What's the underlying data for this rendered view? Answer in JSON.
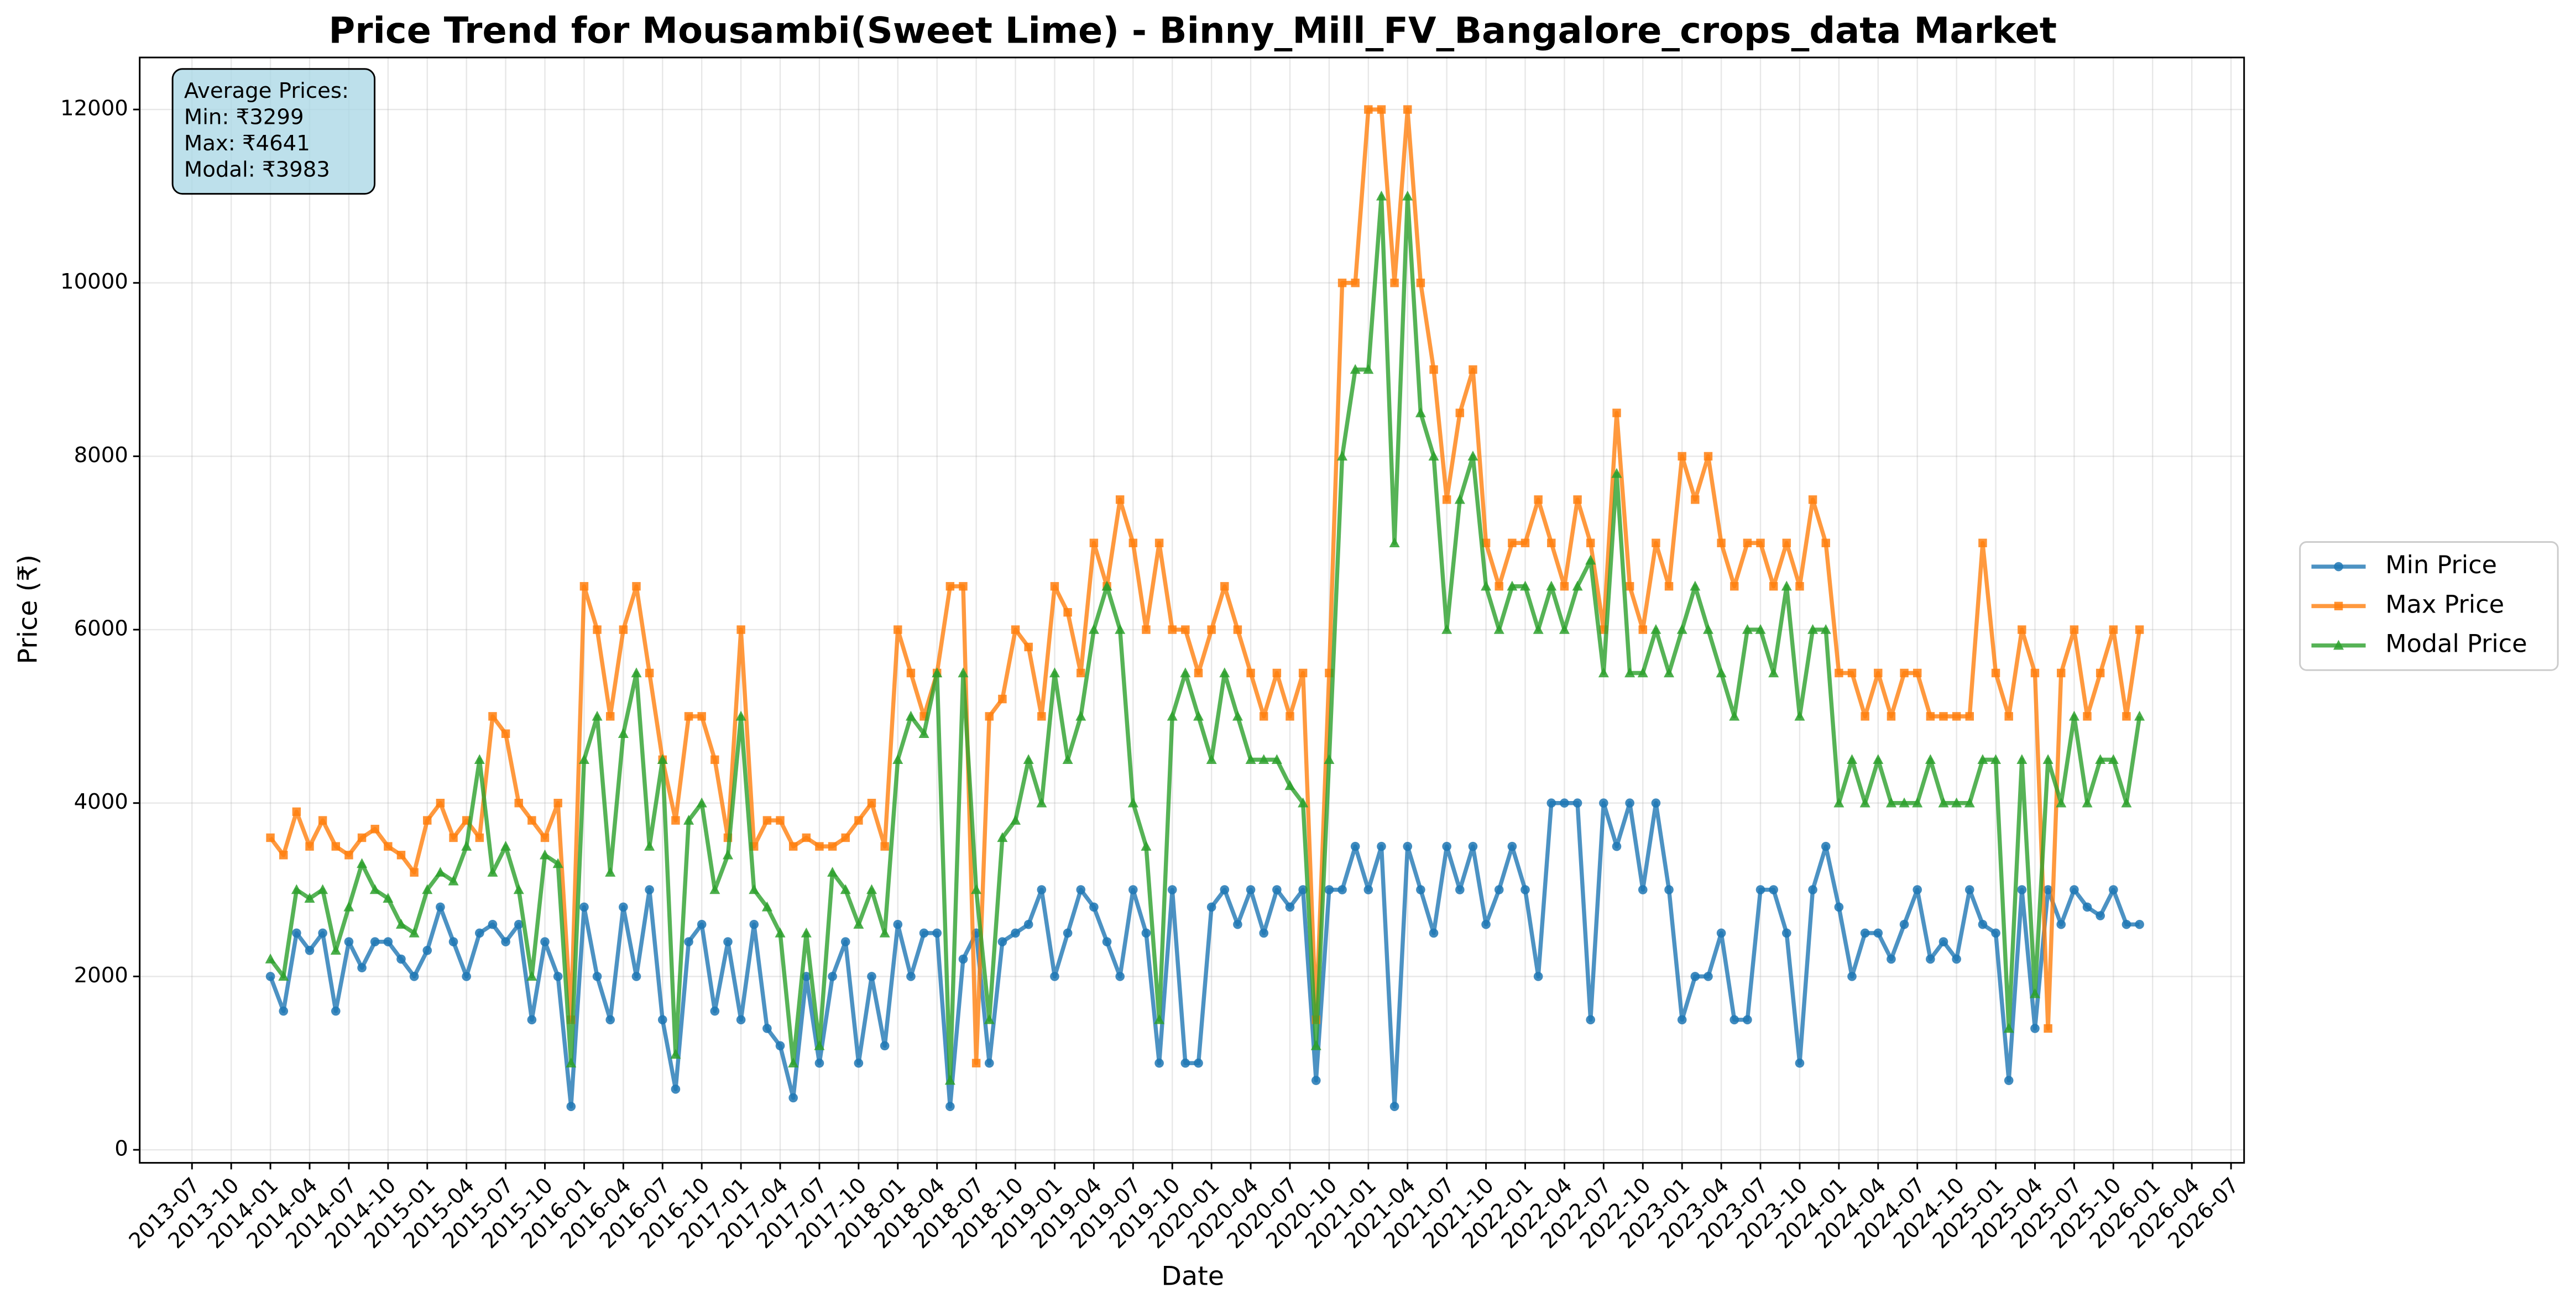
{
  "chart_data": {
    "type": "line",
    "title": "Price Trend for Mousambi(Sweet Lime) - Binny_Mill_FV_Bangalore_crops_data Market",
    "xlabel": "Date",
    "ylabel": "Price (₹)",
    "annotation": [
      "Average Prices:",
      "Min: ₹3299",
      "Max: ₹4641",
      "Modal: ₹3983"
    ],
    "legend": "outside right",
    "grid": true,
    "xlim": [
      "2013-03",
      "2026-08"
    ],
    "ylim": [
      -150,
      12600
    ],
    "yticks": [
      0,
      2000,
      4000,
      6000,
      8000,
      10000,
      12000
    ],
    "xticks": [
      "2013-07",
      "2013-10",
      "2014-01",
      "2014-04",
      "2014-07",
      "2014-10",
      "2015-01",
      "2015-04",
      "2015-07",
      "2015-10",
      "2016-01",
      "2016-04",
      "2016-07",
      "2016-10",
      "2017-01",
      "2017-04",
      "2017-07",
      "2017-10",
      "2018-01",
      "2018-04",
      "2018-07",
      "2018-10",
      "2019-01",
      "2019-04",
      "2019-07",
      "2019-10",
      "2020-01",
      "2020-04",
      "2020-07",
      "2020-10",
      "2021-01",
      "2021-04",
      "2021-07",
      "2021-10",
      "2022-01",
      "2022-04",
      "2022-07",
      "2022-10",
      "2023-01",
      "2023-04",
      "2023-07",
      "2023-10",
      "2024-01",
      "2024-04",
      "2024-07",
      "2024-10",
      "2025-01",
      "2025-04",
      "2025-07",
      "2025-10",
      "2026-01",
      "2026-04",
      "2026-07"
    ],
    "x": [
      "2014-01",
      "2014-02",
      "2014-03",
      "2014-04",
      "2014-05",
      "2014-06",
      "2014-07",
      "2014-08",
      "2014-09",
      "2014-10",
      "2014-11",
      "2014-12",
      "2015-01",
      "2015-02",
      "2015-03",
      "2015-04",
      "2015-05",
      "2015-06",
      "2015-07",
      "2015-08",
      "2015-09",
      "2015-10",
      "2015-11",
      "2015-12",
      "2016-01",
      "2016-02",
      "2016-03",
      "2016-04",
      "2016-05",
      "2016-06",
      "2016-07",
      "2016-08",
      "2016-09",
      "2016-10",
      "2016-11",
      "2016-12",
      "2017-01",
      "2017-02",
      "2017-03",
      "2017-04",
      "2017-05",
      "2017-06",
      "2017-07",
      "2017-08",
      "2017-09",
      "2017-10",
      "2017-11",
      "2017-12",
      "2018-01",
      "2018-02",
      "2018-03",
      "2018-04",
      "2018-05",
      "2018-06",
      "2018-07",
      "2018-08",
      "2018-09",
      "2018-10",
      "2018-11",
      "2018-12",
      "2019-01",
      "2019-02",
      "2019-03",
      "2019-04",
      "2019-05",
      "2019-06",
      "2019-07",
      "2019-08",
      "2019-09",
      "2019-10",
      "2019-11",
      "2019-12",
      "2020-01",
      "2020-02",
      "2020-03",
      "2020-04",
      "2020-05",
      "2020-06",
      "2020-07",
      "2020-08",
      "2020-09",
      "2020-10",
      "2020-11",
      "2020-12",
      "2021-01",
      "2021-02",
      "2021-03",
      "2021-04",
      "2021-05",
      "2021-06",
      "2021-07",
      "2021-08",
      "2021-09",
      "2021-10",
      "2021-11",
      "2021-12",
      "2022-01",
      "2022-02",
      "2022-03",
      "2022-04",
      "2022-05",
      "2022-06",
      "2022-07",
      "2022-08",
      "2022-09",
      "2022-10",
      "2022-11",
      "2022-12",
      "2023-01",
      "2023-02",
      "2023-03",
      "2023-04",
      "2023-05",
      "2023-06",
      "2023-07",
      "2023-08",
      "2023-09",
      "2023-10",
      "2023-11",
      "2023-12",
      "2024-01",
      "2024-02",
      "2024-03",
      "2024-04",
      "2024-05",
      "2024-06",
      "2024-07",
      "2024-08",
      "2024-09",
      "2024-10",
      "2024-11",
      "2024-12",
      "2025-01",
      "2025-02",
      "2025-03",
      "2025-04",
      "2025-05",
      "2025-06",
      "2025-07",
      "2025-08",
      "2025-09",
      "2025-10",
      "2025-11",
      "2025-12"
    ],
    "series": [
      {
        "name": "Min Price",
        "color": "#1f77b4",
        "marker": "circle",
        "values": [
          2000,
          1600,
          2500,
          2300,
          2500,
          1600,
          2400,
          2100,
          2400,
          2400,
          2200,
          2000,
          2300,
          2800,
          2400,
          2000,
          2500,
          2600,
          2400,
          2600,
          1500,
          2400,
          2000,
          500,
          2800,
          2000,
          1500,
          2800,
          2000,
          3000,
          1500,
          700,
          2400,
          2600,
          1600,
          2400,
          1500,
          2600,
          1400,
          1200,
          600,
          2000,
          1000,
          2000,
          2400,
          1000,
          2000,
          1200,
          2600,
          2000,
          2500,
          2500,
          500,
          2200,
          2500,
          1000,
          2400,
          2500,
          2600,
          3000,
          2000,
          2500,
          3000,
          2800,
          2400,
          2000,
          3000,
          2500,
          1000,
          3000,
          1000,
          1000,
          2800,
          3000,
          2600,
          3000,
          2500,
          3000,
          2800,
          3000,
          800,
          3000,
          3000,
          3500,
          3000,
          3500,
          500,
          3500,
          3000,
          2500,
          3500,
          3000,
          3500,
          2600,
          3000,
          3500,
          3000,
          2000,
          4000,
          4000,
          4000,
          1500,
          4000,
          3500,
          4000,
          3000,
          4000,
          3000,
          1500,
          2000,
          2000,
          2500,
          1500,
          1500,
          3000,
          3000,
          2500,
          1000,
          3000,
          3500,
          2800,
          2000,
          2500,
          2500,
          2200,
          2600,
          3000,
          2200,
          2400,
          2200,
          3000,
          2600,
          2500,
          800,
          3000,
          1400,
          3000,
          2600,
          3000,
          2800,
          2700,
          3000,
          2600,
          2600
        ]
      },
      {
        "name": "Max Price",
        "color": "#ff7f0e",
        "marker": "square",
        "values": [
          3600,
          3400,
          3900,
          3500,
          3800,
          3500,
          3400,
          3600,
          3700,
          3500,
          3400,
          3200,
          3800,
          4000,
          3600,
          3800,
          3600,
          5000,
          4800,
          4000,
          3800,
          3600,
          4000,
          1500,
          6500,
          6000,
          5000,
          6000,
          6500,
          5500,
          4500,
          3800,
          5000,
          5000,
          4500,
          3600,
          6000,
          3500,
          3800,
          3800,
          3500,
          3600,
          3500,
          3500,
          3600,
          3800,
          4000,
          3500,
          6000,
          5500,
          5000,
          5500,
          6500,
          6500,
          1000,
          5000,
          5200,
          6000,
          5800,
          5000,
          6500,
          6200,
          5500,
          7000,
          6500,
          7500,
          7000,
          6000,
          7000,
          6000,
          6000,
          5500,
          6000,
          6500,
          6000,
          5500,
          5000,
          5500,
          5000,
          5500,
          1500,
          5500,
          10000,
          10000,
          12000,
          12000,
          10000,
          12000,
          10000,
          9000,
          7500,
          8500,
          9000,
          7000,
          6500,
          7000,
          7000,
          7500,
          7000,
          6500,
          7500,
          7000,
          6000,
          8500,
          6500,
          6000,
          7000,
          6500,
          8000,
          7500,
          8000,
          7000,
          6500,
          7000,
          7000,
          6500,
          7000,
          6500,
          7500,
          7000,
          5500,
          5500,
          5000,
          5500,
          5000,
          5500,
          5500,
          5000,
          5000,
          5000,
          5000,
          7000,
          5500,
          5000,
          6000,
          5500,
          1400,
          5500,
          6000,
          5000,
          5500,
          6000,
          5000,
          6000
        ]
      },
      {
        "name": "Modal Price",
        "color": "#2ca02c",
        "marker": "triangle",
        "values": [
          2200,
          2000,
          3000,
          2900,
          3000,
          2300,
          2800,
          3300,
          3000,
          2900,
          2600,
          2500,
          3000,
          3200,
          3100,
          3500,
          4500,
          3200,
          3500,
          3000,
          2000,
          3400,
          3300,
          1000,
          4500,
          5000,
          3200,
          4800,
          5500,
          3500,
          4500,
          1100,
          3800,
          4000,
          3000,
          3400,
          5000,
          3000,
          2800,
          2500,
          1000,
          2500,
          1200,
          3200,
          3000,
          2600,
          3000,
          2500,
          4500,
          5000,
          4800,
          5500,
          800,
          5500,
          3000,
          1500,
          3600,
          3800,
          4500,
          4000,
          5500,
          4500,
          5000,
          6000,
          6500,
          6000,
          4000,
          3500,
          1500,
          5000,
          5500,
          5000,
          4500,
          5500,
          5000,
          4500,
          4500,
          4500,
          4200,
          4000,
          1200,
          4500,
          8000,
          9000,
          9000,
          11000,
          7000,
          11000,
          8500,
          8000,
          6000,
          7500,
          8000,
          6500,
          6000,
          6500,
          6500,
          6000,
          6500,
          6000,
          6500,
          6800,
          5500,
          7800,
          5500,
          5500,
          6000,
          5500,
          6000,
          6500,
          6000,
          5500,
          5000,
          6000,
          6000,
          5500,
          6500,
          5000,
          6000,
          6000,
          4000,
          4500,
          4000,
          4500,
          4000,
          4000,
          4000,
          4500,
          4000,
          4000,
          4000,
          4500,
          4500,
          1400,
          4500,
          1800,
          4500,
          4000,
          5000,
          4000,
          4500,
          4500,
          4000,
          5000
        ]
      }
    ]
  }
}
